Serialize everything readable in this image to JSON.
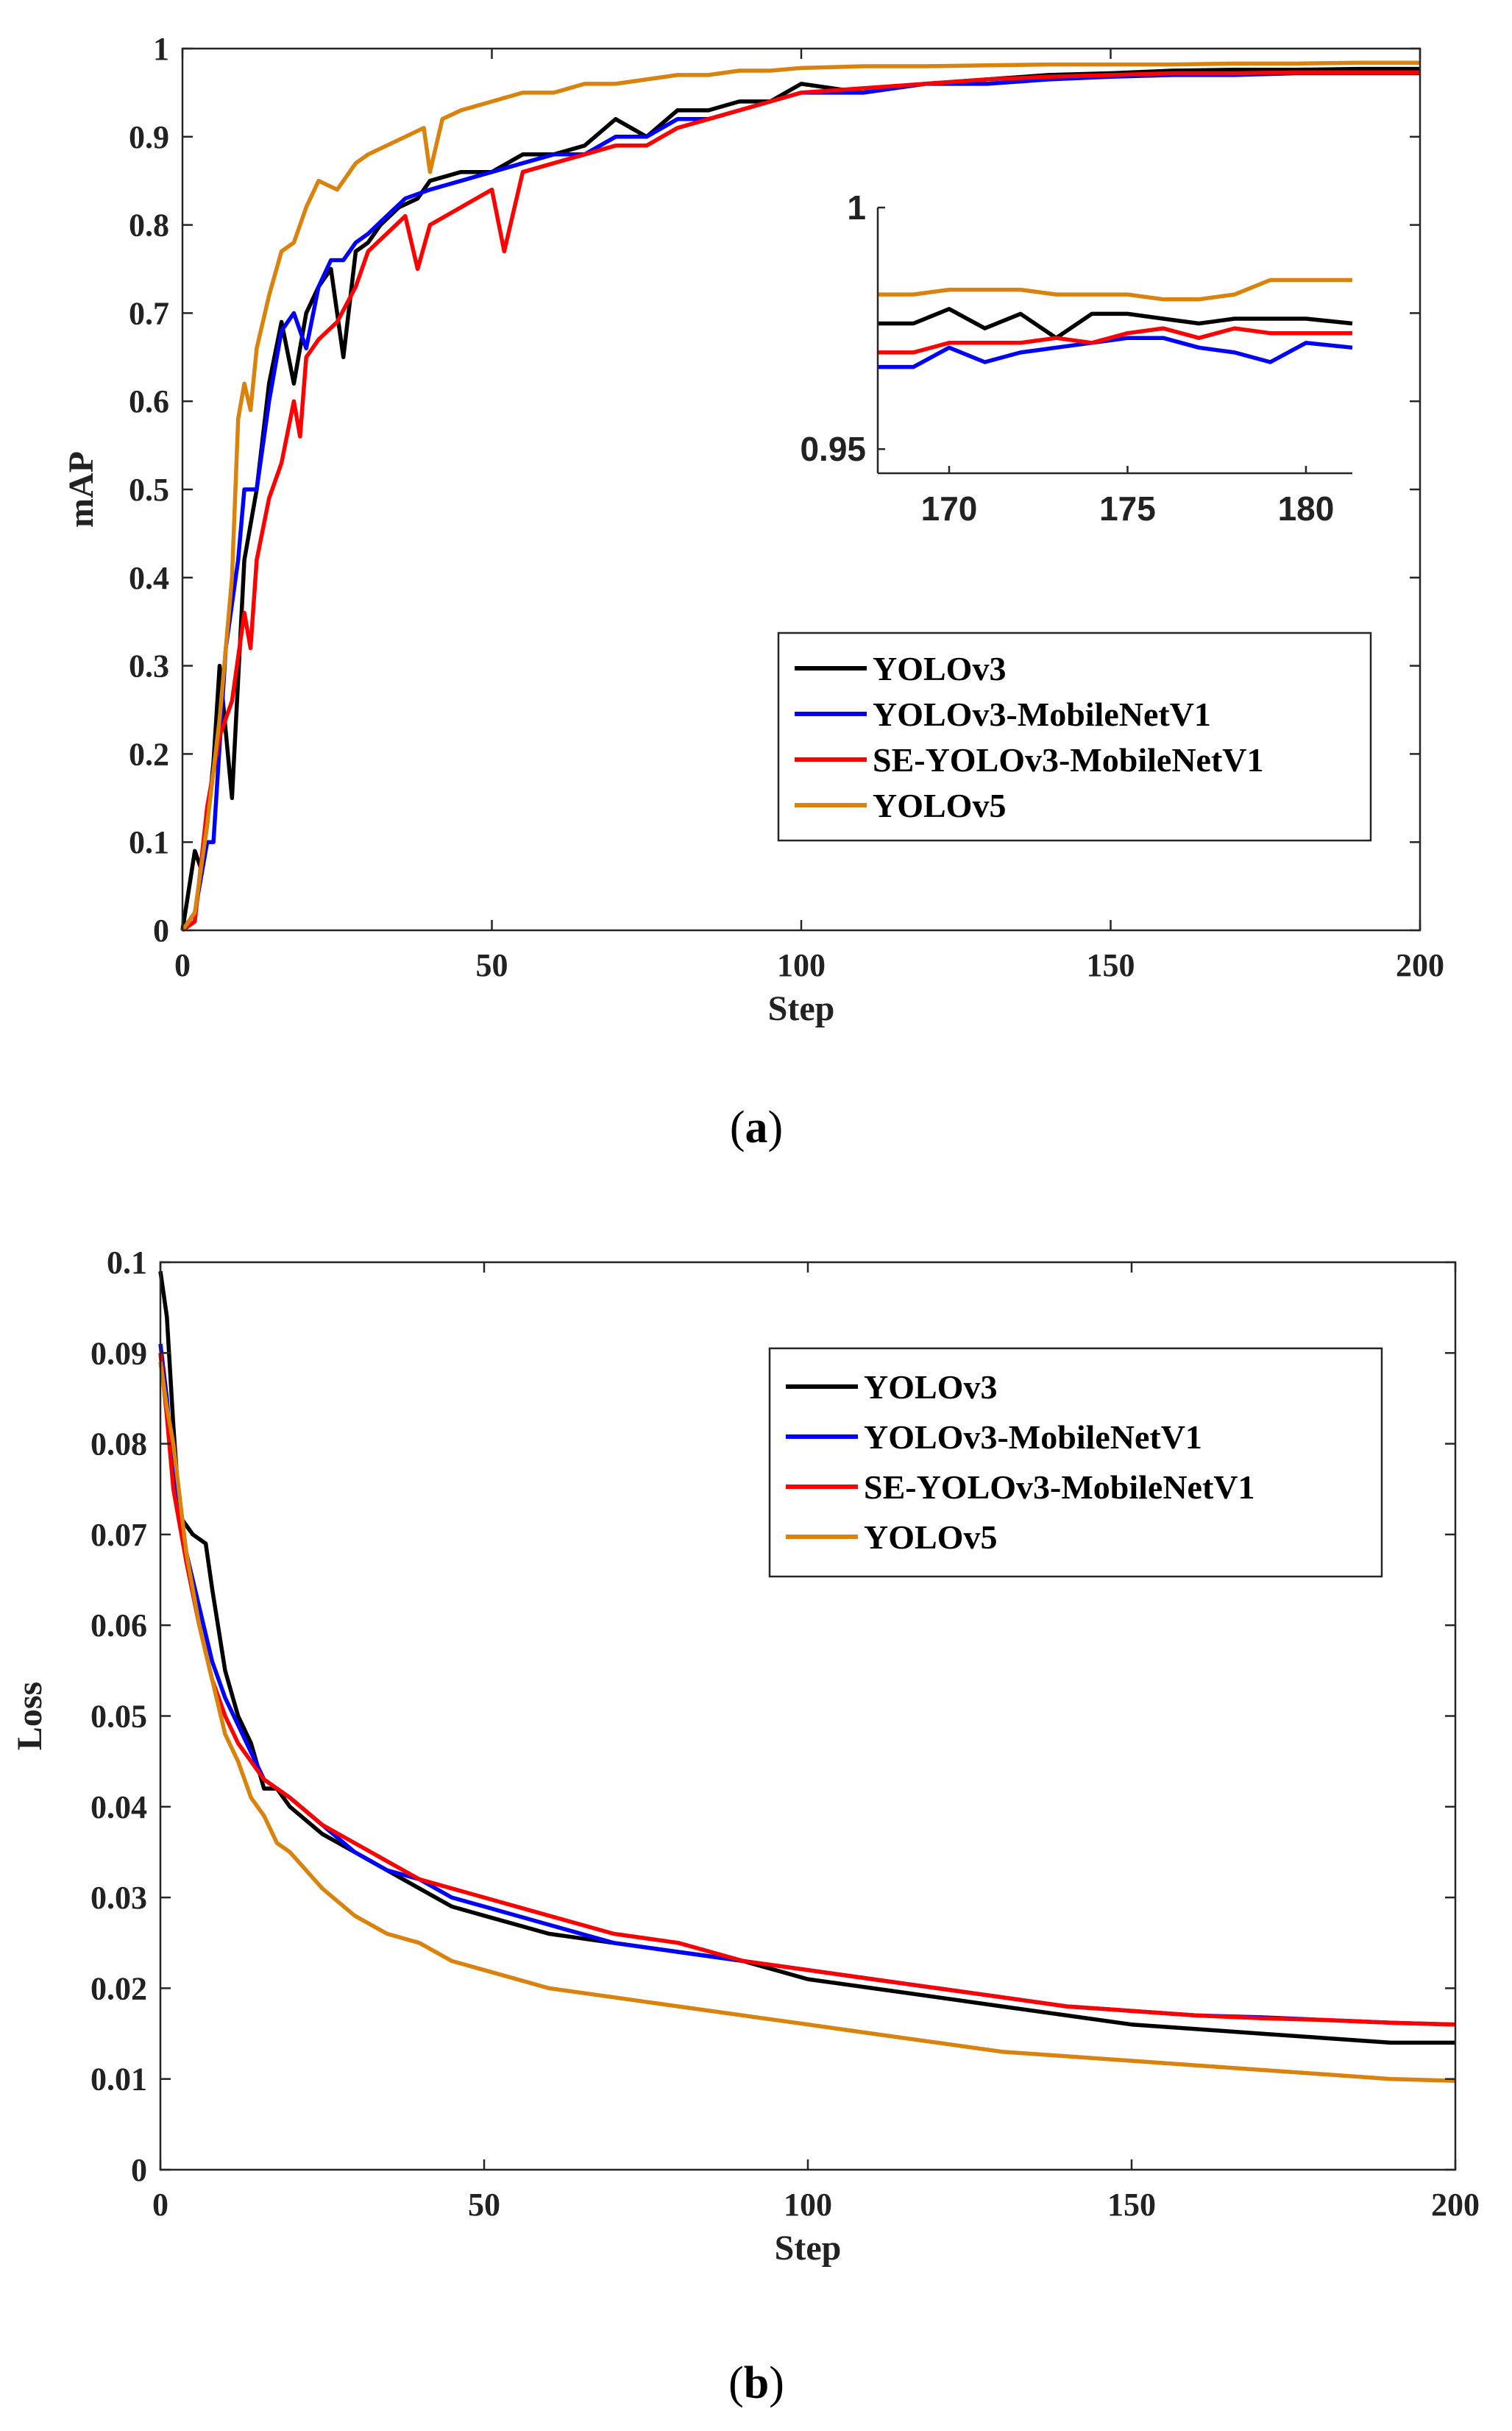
{
  "chart_data": [
    {
      "id": "a",
      "type": "line",
      "caption_prefix": "(",
      "caption_letter": "a",
      "caption_suffix": ")",
      "xlabel": "Step",
      "ylabel": "mAP",
      "xlim": [
        0,
        200
      ],
      "ylim": [
        0,
        1
      ],
      "xticks": [
        0,
        50,
        100,
        150,
        200
      ],
      "xtick_labels": [
        "0",
        "50",
        "100",
        "150",
        "200"
      ],
      "yticks": [
        0,
        0.1,
        0.2,
        0.3,
        0.4,
        0.5,
        0.6,
        0.7,
        0.8,
        0.9,
        1
      ],
      "ytick_labels": [
        "0",
        "0.1",
        "0.2",
        "0.3",
        "0.4",
        "0.5",
        "0.6",
        "0.7",
        "0.8",
        "0.9",
        "1"
      ],
      "grid": false,
      "legend_position": "center-right",
      "series": [
        {
          "name": "YOLOv3",
          "color": "#000000",
          "x": [
            0,
            2,
            3,
            4,
            5,
            6,
            8,
            10,
            12,
            14,
            16,
            18,
            20,
            22,
            24,
            26,
            28,
            30,
            32,
            35,
            38,
            40,
            45,
            50,
            55,
            60,
            65,
            70,
            75,
            80,
            85,
            90,
            95,
            100,
            110,
            120,
            130,
            140,
            150,
            160,
            170,
            180,
            190,
            200
          ],
          "y": [
            0,
            0.09,
            0.07,
            0.12,
            0.19,
            0.3,
            0.15,
            0.42,
            0.5,
            0.62,
            0.69,
            0.62,
            0.7,
            0.73,
            0.75,
            0.65,
            0.77,
            0.78,
            0.8,
            0.82,
            0.83,
            0.85,
            0.86,
            0.86,
            0.88,
            0.88,
            0.89,
            0.92,
            0.9,
            0.93,
            0.93,
            0.94,
            0.94,
            0.96,
            0.95,
            0.96,
            0.965,
            0.97,
            0.972,
            0.975,
            0.976,
            0.976,
            0.977,
            0.977
          ]
        },
        {
          "name": "YOLOv3-MobileNetV1",
          "color": "#0000ff",
          "x": [
            0,
            2,
            4,
            5,
            7,
            9,
            10,
            12,
            14,
            16,
            18,
            20,
            22,
            24,
            26,
            28,
            30,
            33,
            36,
            40,
            45,
            50,
            55,
            60,
            65,
            70,
            75,
            80,
            85,
            90,
            95,
            100,
            110,
            120,
            130,
            140,
            150,
            160,
            170,
            180,
            190,
            200
          ],
          "y": [
            0,
            0.02,
            0.1,
            0.1,
            0.32,
            0.42,
            0.5,
            0.5,
            0.6,
            0.68,
            0.7,
            0.66,
            0.73,
            0.76,
            0.76,
            0.78,
            0.79,
            0.81,
            0.83,
            0.84,
            0.85,
            0.86,
            0.87,
            0.88,
            0.88,
            0.9,
            0.9,
            0.92,
            0.92,
            0.93,
            0.94,
            0.95,
            0.95,
            0.96,
            0.96,
            0.965,
            0.968,
            0.97,
            0.97,
            0.972,
            0.972,
            0.972
          ]
        },
        {
          "name": "SE-YOLOv3-MobileNetV1",
          "color": "#ff0000",
          "x": [
            0,
            2,
            4,
            6,
            8,
            10,
            11,
            12,
            14,
            16,
            18,
            19,
            20,
            22,
            25,
            28,
            30,
            33,
            36,
            38,
            40,
            45,
            50,
            52,
            55,
            60,
            65,
            70,
            75,
            80,
            85,
            90,
            95,
            100,
            110,
            120,
            130,
            140,
            150,
            160,
            170,
            180,
            190,
            200
          ],
          "y": [
            0,
            0.01,
            0.14,
            0.22,
            0.26,
            0.36,
            0.32,
            0.42,
            0.49,
            0.53,
            0.6,
            0.56,
            0.65,
            0.67,
            0.69,
            0.73,
            0.77,
            0.79,
            0.81,
            0.75,
            0.8,
            0.82,
            0.84,
            0.77,
            0.86,
            0.87,
            0.88,
            0.89,
            0.89,
            0.91,
            0.92,
            0.93,
            0.94,
            0.95,
            0.955,
            0.96,
            0.965,
            0.968,
            0.97,
            0.972,
            0.972,
            0.973,
            0.973,
            0.973
          ]
        },
        {
          "name": "YOLOv5",
          "color": "#d9820c",
          "x": [
            0,
            2,
            4,
            6,
            8,
            9,
            10,
            11,
            12,
            14,
            16,
            18,
            20,
            22,
            25,
            28,
            30,
            33,
            36,
            39,
            40,
            42,
            45,
            50,
            55,
            60,
            65,
            70,
            75,
            80,
            85,
            90,
            95,
            100,
            110,
            120,
            130,
            140,
            150,
            160,
            170,
            180,
            190,
            200
          ],
          "y": [
            0,
            0.02,
            0.12,
            0.24,
            0.4,
            0.58,
            0.62,
            0.59,
            0.66,
            0.72,
            0.77,
            0.78,
            0.82,
            0.85,
            0.84,
            0.87,
            0.88,
            0.89,
            0.9,
            0.91,
            0.86,
            0.92,
            0.93,
            0.94,
            0.95,
            0.95,
            0.96,
            0.96,
            0.965,
            0.97,
            0.97,
            0.975,
            0.975,
            0.978,
            0.98,
            0.98,
            0.981,
            0.982,
            0.982,
            0.982,
            0.983,
            0.983,
            0.984,
            0.984
          ]
        }
      ],
      "inset": {
        "xlim": [
          168,
          181.3
        ],
        "ylim": [
          0.945,
          1.0
        ],
        "xticks": [
          170,
          175,
          180
        ],
        "xtick_labels": [
          "170",
          "175",
          "180"
        ],
        "yticks": [
          0.95,
          1.0
        ],
        "ytick_labels": [
          "0.95",
          "1"
        ],
        "series": [
          {
            "name": "YOLOv3",
            "color": "#000000",
            "x": [
              168,
              169,
              170,
              171,
              172,
              173,
              174,
              175,
              176,
              177,
              178,
              179,
              180,
              181.3
            ],
            "y": [
              0.976,
              0.976,
              0.979,
              0.975,
              0.978,
              0.973,
              0.978,
              0.978,
              0.977,
              0.976,
              0.977,
              0.977,
              0.977,
              0.976
            ]
          },
          {
            "name": "YOLOv3-MobileNetV1",
            "color": "#0000ff",
            "x": [
              168,
              169,
              170,
              171,
              172,
              173,
              174,
              175,
              176,
              177,
              178,
              179,
              180,
              181.3
            ],
            "y": [
              0.967,
              0.967,
              0.971,
              0.968,
              0.97,
              0.971,
              0.972,
              0.973,
              0.973,
              0.971,
              0.97,
              0.968,
              0.972,
              0.971
            ]
          },
          {
            "name": "SE-YOLOv3-MobileNetV1",
            "color": "#ff0000",
            "x": [
              168,
              169,
              170,
              171,
              172,
              173,
              174,
              175,
              176,
              177,
              178,
              179,
              180,
              181.3
            ],
            "y": [
              0.97,
              0.97,
              0.972,
              0.972,
              0.972,
              0.973,
              0.972,
              0.974,
              0.975,
              0.973,
              0.975,
              0.974,
              0.974,
              0.974
            ]
          },
          {
            "name": "YOLOv5",
            "color": "#d9820c",
            "x": [
              168,
              169,
              170,
              171,
              172,
              173,
              174,
              175,
              176,
              177,
              178,
              179,
              180,
              181.3
            ],
            "y": [
              0.982,
              0.982,
              0.983,
              0.983,
              0.983,
              0.982,
              0.982,
              0.982,
              0.981,
              0.981,
              0.982,
              0.985,
              0.985,
              0.985
            ]
          }
        ]
      }
    },
    {
      "id": "b",
      "type": "line",
      "caption_prefix": "(",
      "caption_letter": "b",
      "caption_suffix": ")",
      "xlabel": "Step",
      "ylabel": "Loss",
      "xlim": [
        0,
        200
      ],
      "ylim": [
        0,
        0.1
      ],
      "xticks": [
        0,
        50,
        100,
        150,
        200
      ],
      "xtick_labels": [
        "0",
        "50",
        "100",
        "150",
        "200"
      ],
      "yticks": [
        0,
        0.01,
        0.02,
        0.03,
        0.04,
        0.05,
        0.06,
        0.07,
        0.08,
        0.09,
        0.1
      ],
      "ytick_labels": [
        "0",
        "0.01",
        "0.02",
        "0.03",
        "0.04",
        "0.05",
        "0.06",
        "0.07",
        "0.08",
        "0.09",
        "0.1"
      ],
      "grid": false,
      "legend_position": "top-right",
      "series": [
        {
          "name": "YOLOv3",
          "color": "#000000",
          "x": [
            0,
            1,
            2,
            3,
            5,
            7,
            8,
            10,
            12,
            14,
            16,
            18,
            20,
            25,
            30,
            35,
            40,
            45,
            50,
            60,
            70,
            80,
            90,
            100,
            110,
            120,
            130,
            140,
            150,
            160,
            170,
            180,
            190,
            200
          ],
          "y": [
            0.099,
            0.094,
            0.082,
            0.072,
            0.07,
            0.069,
            0.064,
            0.055,
            0.05,
            0.047,
            0.042,
            0.042,
            0.04,
            0.037,
            0.035,
            0.033,
            0.031,
            0.029,
            0.028,
            0.026,
            0.025,
            0.024,
            0.023,
            0.021,
            0.02,
            0.019,
            0.018,
            0.017,
            0.016,
            0.0155,
            0.015,
            0.0145,
            0.014,
            0.014
          ]
        },
        {
          "name": "YOLOv3-MobileNetV1",
          "color": "#0000ff",
          "x": [
            0,
            1,
            2,
            4,
            6,
            8,
            10,
            12,
            14,
            16,
            18,
            20,
            25,
            30,
            35,
            40,
            45,
            50,
            60,
            70,
            80,
            90,
            100,
            110,
            120,
            130,
            140,
            150,
            160,
            170,
            180,
            190,
            200
          ],
          "y": [
            0.091,
            0.085,
            0.076,
            0.068,
            0.062,
            0.056,
            0.052,
            0.049,
            0.046,
            0.043,
            0.042,
            0.041,
            0.038,
            0.035,
            0.033,
            0.032,
            0.03,
            0.029,
            0.027,
            0.025,
            0.024,
            0.023,
            0.022,
            0.021,
            0.02,
            0.019,
            0.018,
            0.0175,
            0.017,
            0.0168,
            0.0165,
            0.0162,
            0.016
          ]
        },
        {
          "name": "SE-YOLOv3-MobileNetV1",
          "color": "#ff0000",
          "x": [
            0,
            1,
            2,
            4,
            6,
            8,
            10,
            12,
            14,
            16,
            18,
            20,
            25,
            30,
            35,
            40,
            45,
            50,
            60,
            70,
            80,
            90,
            100,
            110,
            120,
            130,
            140,
            150,
            160,
            170,
            180,
            190,
            200
          ],
          "y": [
            0.09,
            0.083,
            0.075,
            0.067,
            0.06,
            0.054,
            0.05,
            0.047,
            0.045,
            0.043,
            0.042,
            0.041,
            0.038,
            0.036,
            0.034,
            0.032,
            0.031,
            0.03,
            0.028,
            0.026,
            0.025,
            0.023,
            0.022,
            0.021,
            0.02,
            0.019,
            0.018,
            0.0175,
            0.017,
            0.0167,
            0.0165,
            0.0162,
            0.016
          ]
        },
        {
          "name": "YOLOv5",
          "color": "#d9820c",
          "x": [
            0,
            1,
            2,
            4,
            6,
            8,
            10,
            12,
            14,
            16,
            18,
            20,
            25,
            30,
            35,
            40,
            45,
            50,
            60,
            70,
            80,
            90,
            100,
            110,
            120,
            130,
            140,
            150,
            160,
            170,
            180,
            190,
            200
          ],
          "y": [
            0.089,
            0.084,
            0.08,
            0.068,
            0.06,
            0.054,
            0.048,
            0.045,
            0.041,
            0.039,
            0.036,
            0.035,
            0.031,
            0.028,
            0.026,
            0.025,
            0.023,
            0.022,
            0.02,
            0.019,
            0.018,
            0.017,
            0.016,
            0.015,
            0.014,
            0.013,
            0.0125,
            0.012,
            0.0115,
            0.011,
            0.0105,
            0.01,
            0.0098
          ]
        }
      ]
    }
  ]
}
